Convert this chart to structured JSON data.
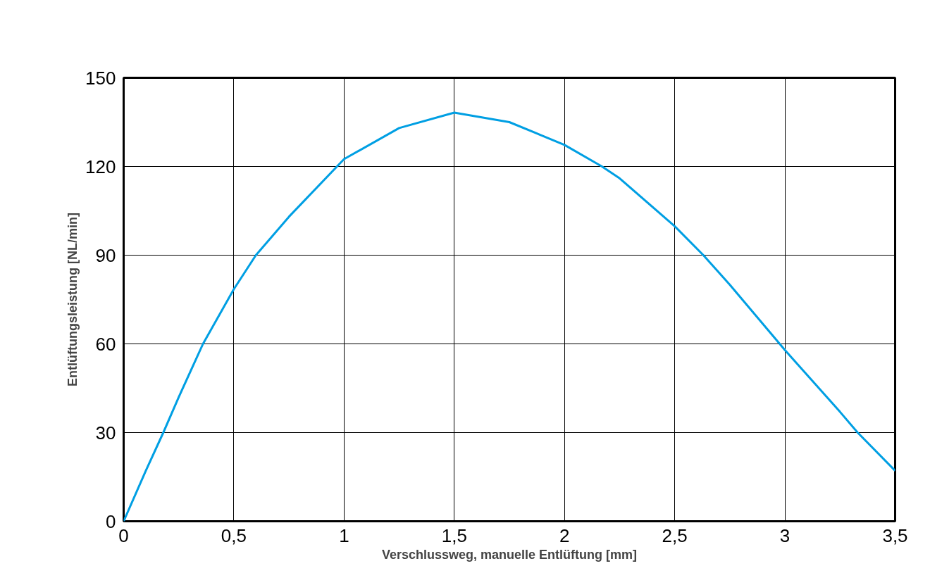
{
  "chart_data": {
    "type": "line",
    "xlabel": "Verschlussweg, manuelle Entlüftung [mm]",
    "ylabel": "Entlüftungsleistung [NL/min]",
    "x": [
      0,
      0.1,
      0.18,
      0.25,
      0.36,
      0.5,
      0.6,
      0.75,
      1,
      1.25,
      1.5,
      1.75,
      2,
      2.17,
      2.25,
      2.5,
      2.63,
      2.75,
      3,
      3.25,
      3.33,
      3.5
    ],
    "series": [
      {
        "color": "#009fe3",
        "values": [
          0,
          17,
          30,
          42,
          60,
          78.5,
          90,
          103,
          122.5,
          133,
          138.2,
          135,
          127.3,
          120,
          116,
          99.8,
          90,
          80,
          57.9,
          37,
          30,
          17.1
        ]
      }
    ],
    "xlim": [
      0,
      3.5
    ],
    "xticks": [
      0,
      {
        "value": 0.5,
        "label": "0,5"
      },
      1,
      {
        "value": 1.5,
        "label": "1,5"
      },
      2,
      {
        "value": 2.5,
        "label": "2,5"
      },
      3,
      {
        "value": 3.5,
        "label": "3,5"
      }
    ],
    "ylim": [
      0,
      150
    ],
    "yticks": [
      0,
      30,
      60,
      90,
      120,
      150
    ],
    "grid": true,
    "marker": "none",
    "line_style": "solid"
  }
}
